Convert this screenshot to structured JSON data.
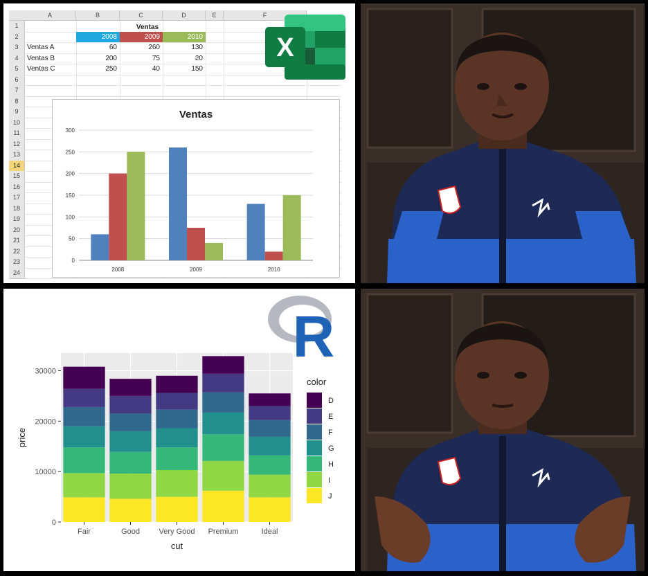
{
  "excel": {
    "col_headers": [
      "A",
      "B",
      "C",
      "D",
      "E",
      "F"
    ],
    "row_numbers": [
      "1",
      "2",
      "3",
      "4",
      "5",
      "6",
      "7",
      "8",
      "9",
      "10",
      "11",
      "12",
      "13",
      "14",
      "15",
      "16",
      "17",
      "18",
      "19",
      "20",
      "21",
      "22",
      "23",
      "24"
    ],
    "table_title": "Ventas",
    "years": [
      "2008",
      "2009",
      "2010"
    ],
    "year_colors": [
      "#1fa9e1",
      "#c0504d",
      "#9bbb59"
    ],
    "rows": [
      {
        "label": "Ventas A",
        "values": [
          "60",
          "260",
          "130"
        ]
      },
      {
        "label": "Ventas B",
        "values": [
          "200",
          "75",
          "20"
        ]
      },
      {
        "label": "Ventas C",
        "values": [
          "250",
          "40",
          "150"
        ]
      }
    ],
    "logo_letter": "X",
    "logo_name": "excel-logo-icon"
  },
  "r_panel": {
    "logo_letter": "R",
    "logo_name": "r-logo-icon"
  },
  "chart_data": [
    {
      "type": "bar",
      "title": "Ventas",
      "categories": [
        "2008",
        "2009",
        "2010"
      ],
      "series": [
        {
          "values": [
            60,
            260,
            130
          ],
          "color": "#4f81bd"
        },
        {
          "values": [
            200,
            75,
            20
          ],
          "color": "#c0504d"
        },
        {
          "values": [
            250,
            40,
            150
          ],
          "color": "#9bbb59"
        }
      ],
      "yticks": [
        "0",
        "50",
        "100",
        "150",
        "200",
        "250",
        "300"
      ],
      "ylim": [
        0,
        300
      ],
      "grid": true,
      "legend": "none"
    },
    {
      "type": "bar",
      "stacked": true,
      "xlabel": "cut",
      "ylabel": "price",
      "categories": [
        "Fair",
        "Good",
        "Very Good",
        "Premium",
        "Ideal"
      ],
      "yticks": [
        "0",
        "10000",
        "20000",
        "30000"
      ],
      "ylim": [
        0,
        33500
      ],
      "legend_title": "color",
      "legend": "right",
      "series": [
        {
          "name": "J",
          "color": "#fde725",
          "values": [
            4900,
            4600,
            5000,
            6200,
            4900
          ]
        },
        {
          "name": "I",
          "color": "#8fd744",
          "values": [
            4800,
            5000,
            5300,
            5900,
            4500
          ]
        },
        {
          "name": "H",
          "color": "#35b779",
          "values": [
            5100,
            4300,
            4500,
            5300,
            3800
          ]
        },
        {
          "name": "G",
          "color": "#21908d",
          "values": [
            4200,
            4100,
            3800,
            4300,
            3700
          ]
        },
        {
          "name": "F",
          "color": "#31688e",
          "values": [
            3800,
            3500,
            3700,
            4000,
            3300
          ]
        },
        {
          "name": "E",
          "color": "#443a83",
          "values": [
            3600,
            3500,
            3300,
            3700,
            2800
          ]
        },
        {
          "name": "D",
          "color": "#440154",
          "values": [
            4400,
            3400,
            3400,
            3500,
            2500
          ]
        }
      ],
      "legend_order": [
        "D",
        "E",
        "F",
        "G",
        "H",
        "I",
        "J"
      ]
    }
  ]
}
